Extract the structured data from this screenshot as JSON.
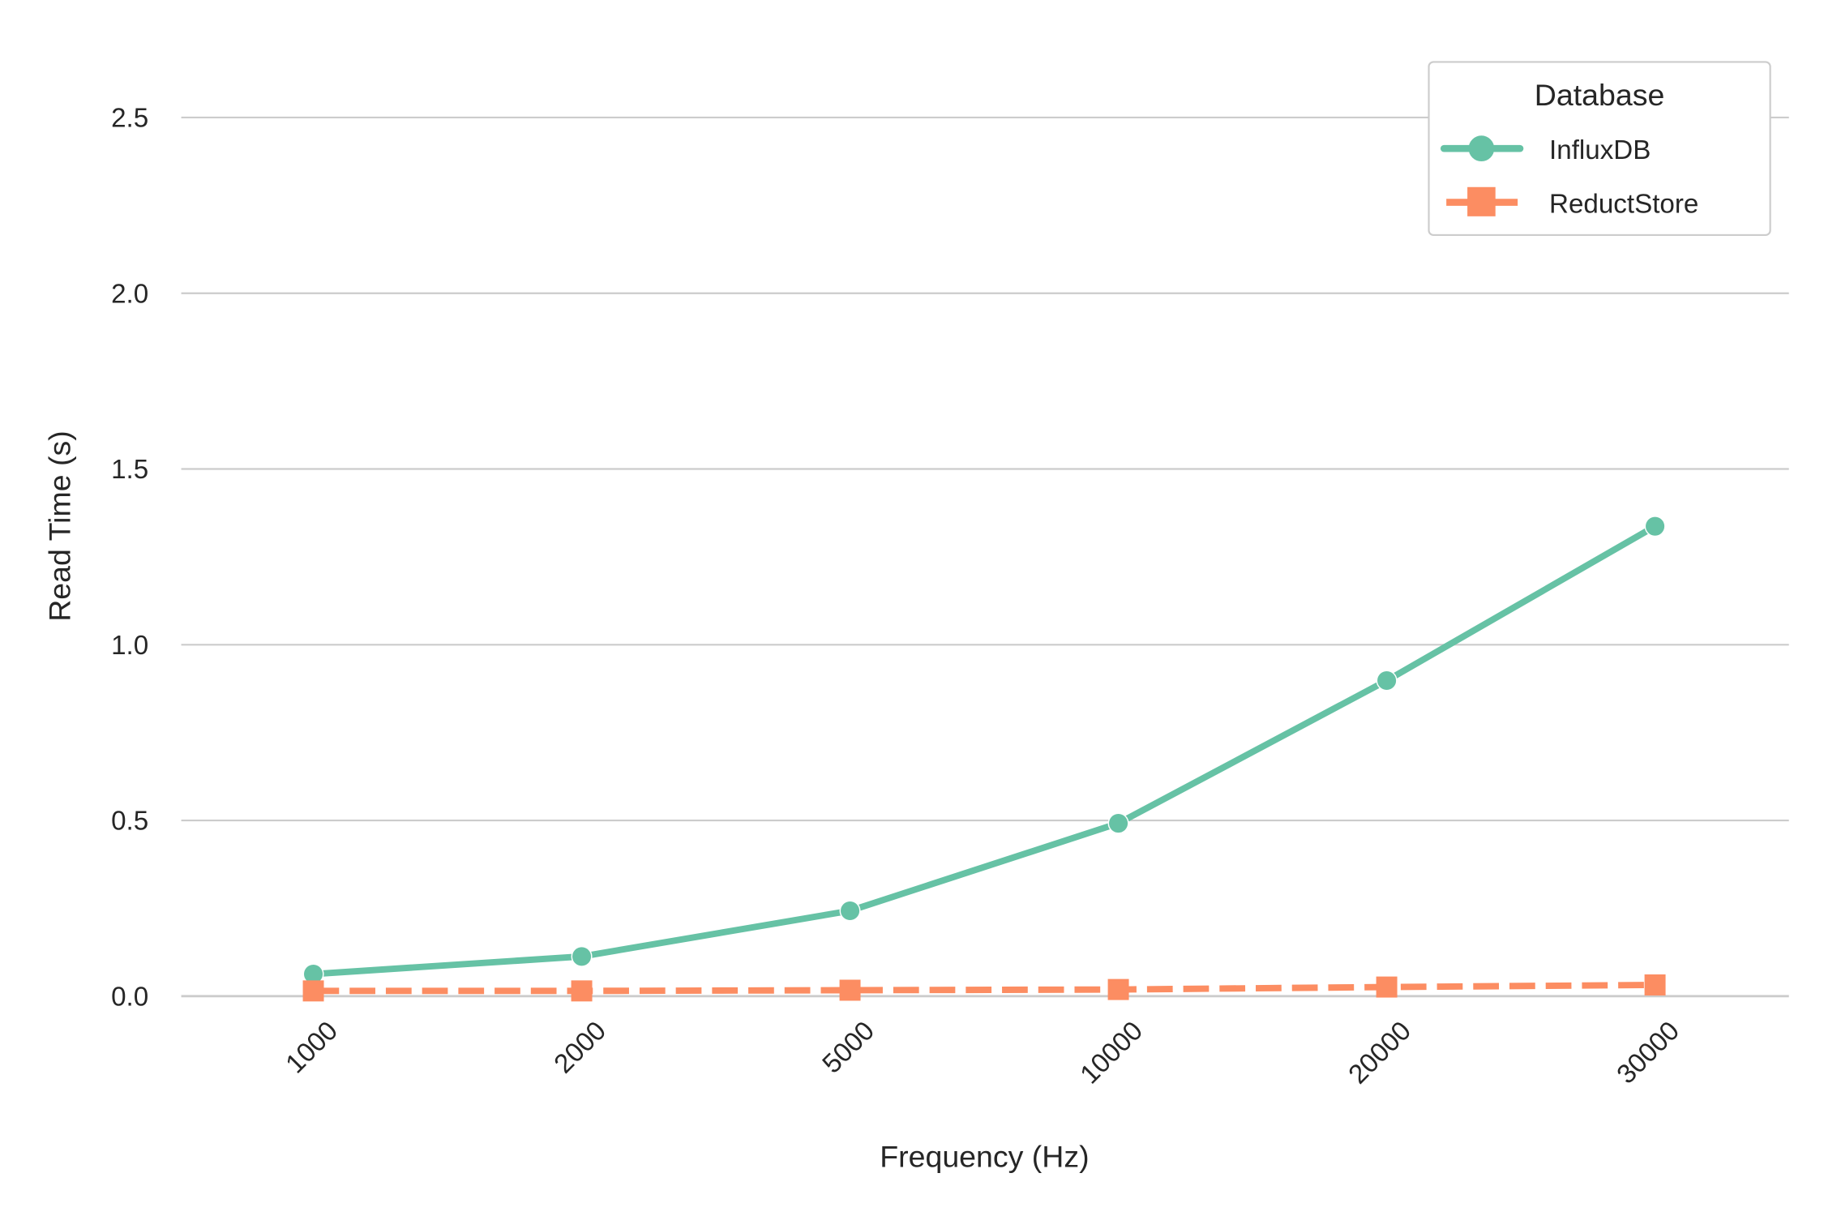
{
  "chart_data": {
    "type": "line",
    "title": "",
    "xlabel": "Frequency (Hz)",
    "ylabel": "Read Time (s)",
    "categories": [
      "1000",
      "2000",
      "5000",
      "10000",
      "20000",
      "30000"
    ],
    "ylim": [
      0,
      2.7
    ],
    "yticks": [
      "0.0",
      "0.5",
      "1.0",
      "1.5",
      "2.0",
      "2.5"
    ],
    "grid": "horizontal",
    "legend": {
      "title": "Database",
      "placement": "top-right"
    },
    "series": [
      {
        "name": "InfluxDB",
        "color": "#66c2a5",
        "marker": "circle",
        "linestyle": "solid",
        "values": [
          0.063,
          0.113,
          0.243,
          0.492,
          0.898,
          1.337
        ]
      },
      {
        "name": "ReductStore",
        "color": "#fc8d62",
        "marker": "square",
        "linestyle": "dashed",
        "values": [
          0.015,
          0.015,
          0.017,
          0.019,
          0.026,
          0.032
        ]
      }
    ]
  }
}
